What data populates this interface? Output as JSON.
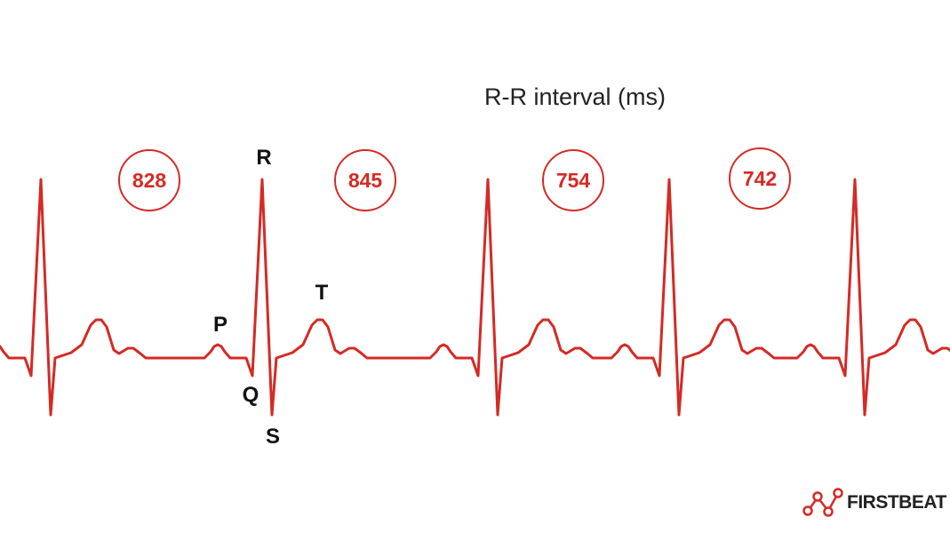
{
  "title": "R-R interval (ms)",
  "intervals": [
    "828",
    "845",
    "754",
    "742"
  ],
  "waves": {
    "r": "R",
    "p": "P",
    "q": "Q",
    "s": "S",
    "t": "T"
  },
  "logo": {
    "text": "FIRSTBEAT",
    "icon": "network-nodes-icon"
  },
  "colors": {
    "ecg": "#d42a25",
    "text": "#111111"
  }
}
